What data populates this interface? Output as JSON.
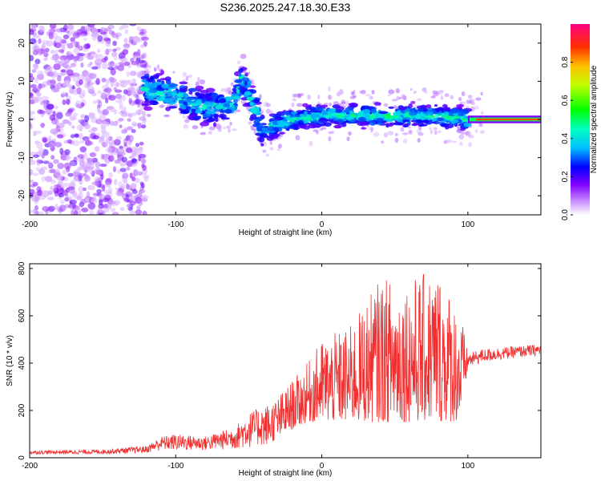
{
  "title": "S236.2025.247.18.30.E33",
  "colors": {
    "snr_line": "#f03030",
    "axis": "#000000",
    "background": "#ffffff"
  },
  "chart_data": [
    {
      "type": "heatmap",
      "xlabel": "Height of straight line (km)",
      "ylabel": "Frequency (Hz)",
      "xlim": [
        -200,
        150
      ],
      "ylim": [
        -25,
        25
      ],
      "xticks": [
        -200,
        -100,
        0,
        100
      ],
      "yticks": [
        -20,
        -10,
        0,
        10,
        20
      ],
      "colorbar": {
        "label": "Normalized spectral amplitude",
        "range": [
          0,
          1
        ],
        "ticks": [
          0.0,
          0.2,
          0.4,
          0.6,
          0.8
        ],
        "tick_labels": [
          "0.0",
          "0.2",
          "0.4",
          "0.6",
          "0.8"
        ]
      },
      "ridge": {
        "description": "dominant frequency ridge",
        "x": [
          -120,
          -100,
          -80,
          -60,
          -55,
          -45,
          -40,
          -30,
          -20,
          0,
          20,
          50,
          80,
          95,
          100,
          150
        ],
        "y": [
          8,
          6,
          3,
          4,
          11,
          2,
          -3,
          -1,
          0,
          1,
          1,
          1,
          1,
          0.5,
          0,
          0
        ]
      },
      "scatter_region": {
        "x": [
          -200,
          -120
        ],
        "y": [
          -25,
          25
        ]
      }
    },
    {
      "type": "line",
      "xlabel": "Height of straight line (km)",
      "ylabel": "SNR (10 * v/v)",
      "xlim": [
        -200,
        150
      ],
      "ylim": [
        0,
        820
      ],
      "xticks": [
        -200,
        -100,
        0,
        100
      ],
      "yticks": [
        0,
        200,
        400,
        600,
        800
      ],
      "series": [
        {
          "name": "SNR",
          "envelope_x": [
            -200,
            -150,
            -120,
            -110,
            -100,
            -80,
            -60,
            -50,
            -40,
            -30,
            -20,
            -10,
            0,
            20,
            40,
            60,
            80,
            95,
            100,
            110,
            130,
            150
          ],
          "envelope_lo": [
            15,
            15,
            20,
            30,
            30,
            30,
            35,
            40,
            50,
            80,
            120,
            150,
            150,
            150,
            150,
            150,
            150,
            150,
            380,
            400,
            420,
            430
          ],
          "envelope_hi": [
            30,
            35,
            50,
            90,
            100,
            90,
            130,
            190,
            220,
            260,
            330,
            400,
            500,
            560,
            760,
            760,
            800,
            620,
            440,
            460,
            470,
            480
          ]
        }
      ]
    }
  ]
}
